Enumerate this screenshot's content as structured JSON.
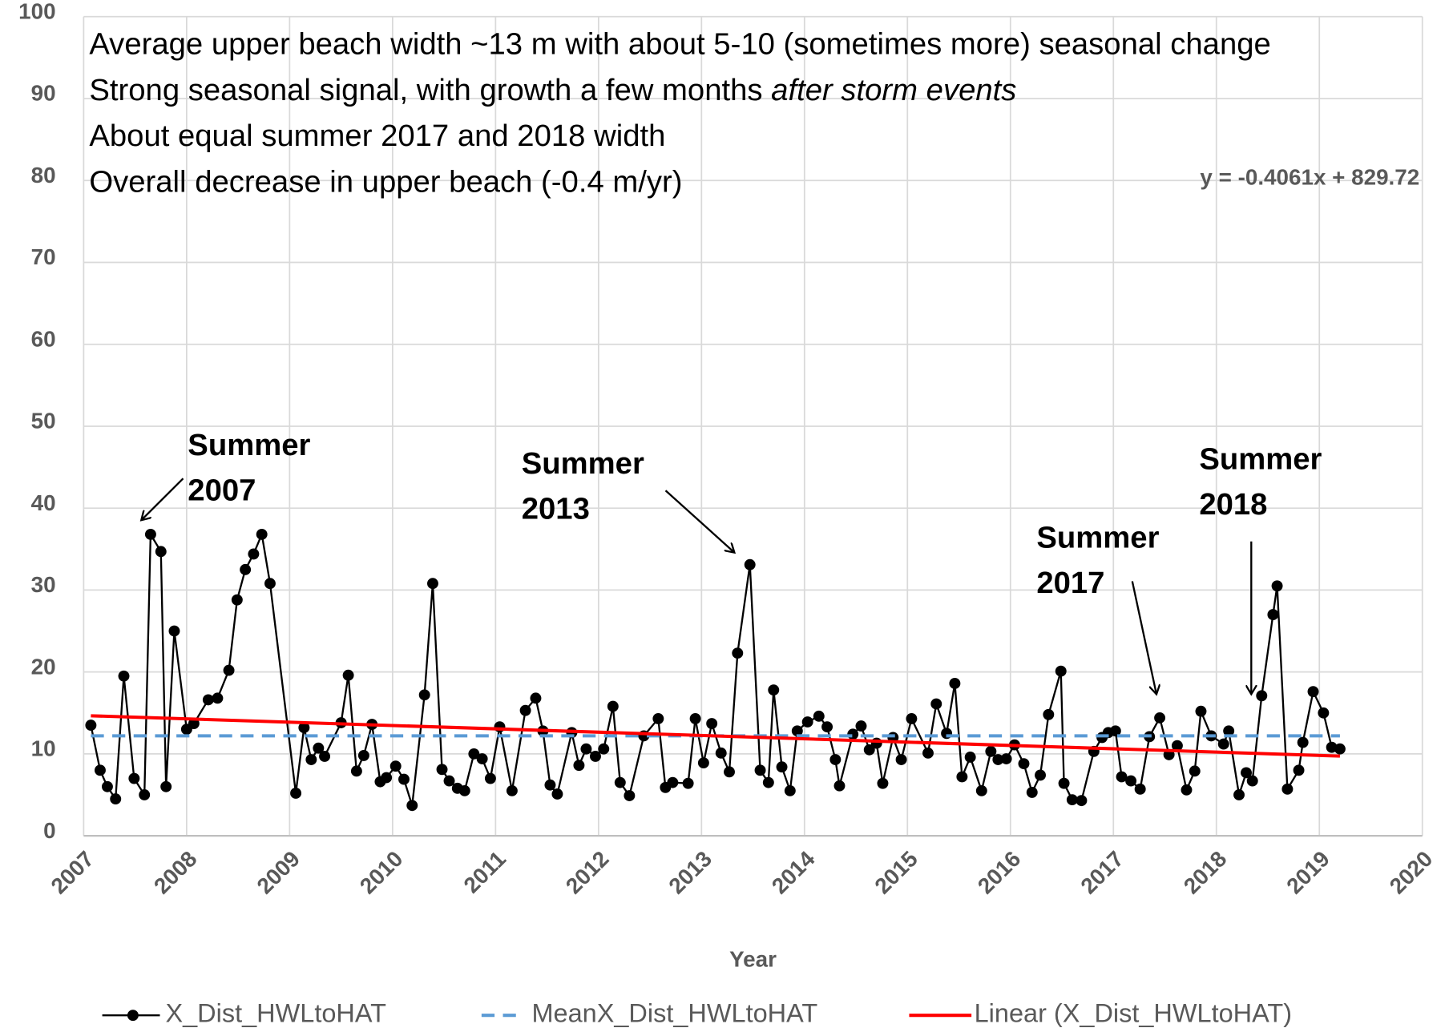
{
  "chart_data": {
    "type": "line",
    "annotations": [
      [
        "Average upper beach width ~13 m with about 5-10 (sometimes more) seasonal change"
      ],
      [
        "Strong seasonal signal, with growth a few months ",
        "after storm events"
      ],
      [
        "About equal  summer 2017 and 2018 width"
      ],
      [
        "Overall decrease in upper beach (-0.4 m/yr)"
      ]
    ],
    "equation": "y = -0.4061x + 829.72",
    "callouts": [
      [
        "Summer",
        "2007"
      ],
      [
        "Summer",
        "2013"
      ],
      [
        "Summer",
        "2017"
      ],
      [
        "Summer",
        "2018"
      ]
    ],
    "x_label": "Year",
    "xlim": [
      2007,
      2020
    ],
    "xticks": [
      2007,
      2008,
      2009,
      2010,
      2011,
      2012,
      2013,
      2014,
      2015,
      2016,
      2017,
      2018,
      2019,
      2020
    ],
    "ylim": [
      0,
      100
    ],
    "yticks": [
      0,
      10,
      20,
      30,
      40,
      50,
      60,
      70,
      80,
      90,
      100
    ],
    "grid": true,
    "legend": "bottom",
    "series": [
      {
        "name": "X_Dist_HWLtoHAT",
        "color": "#000000",
        "marker": "circle",
        "line_style": "solid",
        "x": [
          2007.07,
          2007.16,
          2007.23,
          2007.31,
          2007.39,
          2007.49,
          2007.59,
          2007.65,
          2007.75,
          2007.8,
          2007.88,
          2008.0,
          2008.07,
          2008.21,
          2008.3,
          2008.41,
          2008.49,
          2008.57,
          2008.65,
          2008.73,
          2008.81,
          2009.06,
          2009.14,
          2009.21,
          2009.28,
          2009.34,
          2009.5,
          2009.57,
          2009.65,
          2009.72,
          2009.8,
          2009.88,
          2009.94,
          2010.03,
          2010.11,
          2010.19,
          2010.31,
          2010.39,
          2010.48,
          2010.55,
          2010.63,
          2010.7,
          2010.79,
          2010.87,
          2010.95,
          2011.04,
          2011.16,
          2011.29,
          2011.39,
          2011.46,
          2011.53,
          2011.6,
          2011.74,
          2011.81,
          2011.88,
          2011.97,
          2012.05,
          2012.14,
          2012.21,
          2012.3,
          2012.44,
          2012.58,
          2012.65,
          2012.72,
          2012.87,
          2012.94,
          2013.02,
          2013.1,
          2013.19,
          2013.27,
          2013.35,
          2013.47,
          2013.57,
          2013.65,
          2013.7,
          2013.78,
          2013.86,
          2013.93,
          2014.03,
          2014.14,
          2014.22,
          2014.3,
          2014.34,
          2014.47,
          2014.55,
          2014.63,
          2014.7,
          2014.76,
          2014.86,
          2014.94,
          2015.04,
          2015.2,
          2015.28,
          2015.38,
          2015.46,
          2015.53,
          2015.61,
          2015.72,
          2015.81,
          2015.88,
          2015.96,
          2016.04,
          2016.13,
          2016.21,
          2016.29,
          2016.37,
          2016.49,
          2016.52,
          2016.6,
          2016.69,
          2016.81,
          2016.89,
          2016.95,
          2017.02,
          2017.08,
          2017.17,
          2017.26,
          2017.35,
          2017.45,
          2017.54,
          2017.62,
          2017.71,
          2017.79,
          2017.85,
          2017.95,
          2018.07,
          2018.12,
          2018.22,
          2018.29,
          2018.35,
          2018.44,
          2018.55,
          2018.59,
          2018.69,
          2018.8,
          2018.84,
          2018.94,
          2019.04,
          2019.12,
          2019.2
        ],
        "values": [
          13.5,
          8,
          6,
          4.5,
          19.5,
          7,
          5,
          36.8,
          34.7,
          6,
          25,
          13,
          13.7,
          16.6,
          16.8,
          20.2,
          28.8,
          32.5,
          34.4,
          36.8,
          30.8,
          5.2,
          13.2,
          9.3,
          10.7,
          9.7,
          13.8,
          19.6,
          7.9,
          9.8,
          13.6,
          6.6,
          7.1,
          8.5,
          6.9,
          3.7,
          17.2,
          30.8,
          8.1,
          6.7,
          5.8,
          5.5,
          10,
          9.4,
          7,
          13.3,
          5.5,
          15.3,
          16.8,
          12.8,
          6.2,
          5.1,
          12.6,
          8.6,
          10.6,
          9.7,
          10.6,
          15.8,
          6.5,
          4.9,
          12.2,
          14.3,
          5.9,
          6.5,
          6.4,
          14.3,
          8.9,
          13.7,
          10.1,
          7.8,
          22.3,
          33.1,
          8,
          6.5,
          17.8,
          8.4,
          5.5,
          12.8,
          13.9,
          14.6,
          13.3,
          9.3,
          6.1,
          12.4,
          13.4,
          10.5,
          11.3,
          6.4,
          12,
          9.3,
          14.3,
          10.1,
          16.1,
          12.5,
          18.6,
          7.2,
          9.6,
          5.5,
          10.3,
          9.3,
          9.4,
          11.1,
          8.8,
          5.3,
          7.4,
          14.8,
          20.1,
          6.4,
          4.4,
          4.3,
          10.3,
          12,
          12.6,
          12.8,
          7.2,
          6.7,
          5.7,
          12.1,
          14.4,
          9.9,
          11,
          5.6,
          7.9,
          15.2,
          12.2,
          11.2,
          12.8,
          5,
          7.7,
          6.7,
          17.1,
          27,
          30.5,
          5.7,
          8,
          11.4,
          17.6,
          15,
          10.8,
          10.6
        ]
      },
      {
        "name": "MeanX_Dist_HWLtoHAT",
        "color": "#5b9bd5",
        "line_style": "dashed",
        "x": [
          2007.07,
          2019.2
        ],
        "values": [
          12.2,
          12.2
        ]
      },
      {
        "name": "Linear (X_Dist_HWLtoHAT)",
        "color": "#ff0000",
        "line_style": "solid",
        "x": [
          2007.07,
          2019.2
        ],
        "values": [
          14.65,
          9.73
        ]
      }
    ]
  }
}
